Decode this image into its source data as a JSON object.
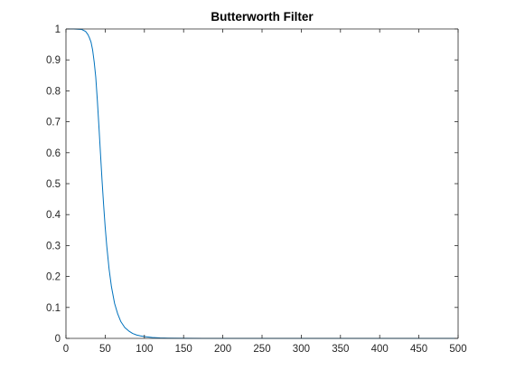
{
  "chart_data": {
    "type": "line",
    "title": "Butterworth Filter",
    "xlabel": "",
    "ylabel": "",
    "xlim": [
      0,
      500
    ],
    "ylim": [
      0,
      1
    ],
    "xticks": [
      0,
      50,
      100,
      150,
      200,
      250,
      300,
      350,
      400,
      450,
      500
    ],
    "yticks": [
      0,
      0.1,
      0.2,
      0.3,
      0.4,
      0.5,
      0.6,
      0.7,
      0.8,
      0.9,
      1
    ],
    "xtick_labels": [
      "0",
      "50",
      "100",
      "150",
      "200",
      "250",
      "300",
      "350",
      "400",
      "450",
      "500"
    ],
    "ytick_labels": [
      "0",
      "0.1",
      "0.2",
      "0.3",
      "0.4",
      "0.5",
      "0.6",
      "0.7",
      "0.8",
      "0.9",
      "1"
    ],
    "grid": false,
    "box": true,
    "line_color": "#0072BD",
    "series": [
      {
        "x": [
          0,
          10,
          20,
          25,
          28,
          30,
          32,
          34,
          36,
          38,
          40,
          42,
          44,
          46,
          48,
          50,
          52,
          55,
          58,
          62,
          66,
          70,
          75,
          80,
          85,
          90,
          95,
          100,
          110,
          120,
          130,
          150,
          175,
          200,
          250,
          300,
          350,
          400,
          450,
          500
        ],
        "values": [
          1.0,
          1.0,
          0.9985,
          0.9922,
          0.982,
          0.971,
          0.957,
          0.932,
          0.893,
          0.844,
          0.77,
          0.686,
          0.598,
          0.511,
          0.432,
          0.36,
          0.299,
          0.224,
          0.167,
          0.113,
          0.079,
          0.054,
          0.035,
          0.024,
          0.016,
          0.011,
          0.008,
          0.006,
          0.003,
          0.0015,
          0.0008,
          0.0003,
          0.0001,
          0.0,
          0.0,
          0.0,
          0.0,
          0.0,
          0.0,
          0.0
        ]
      }
    ]
  }
}
